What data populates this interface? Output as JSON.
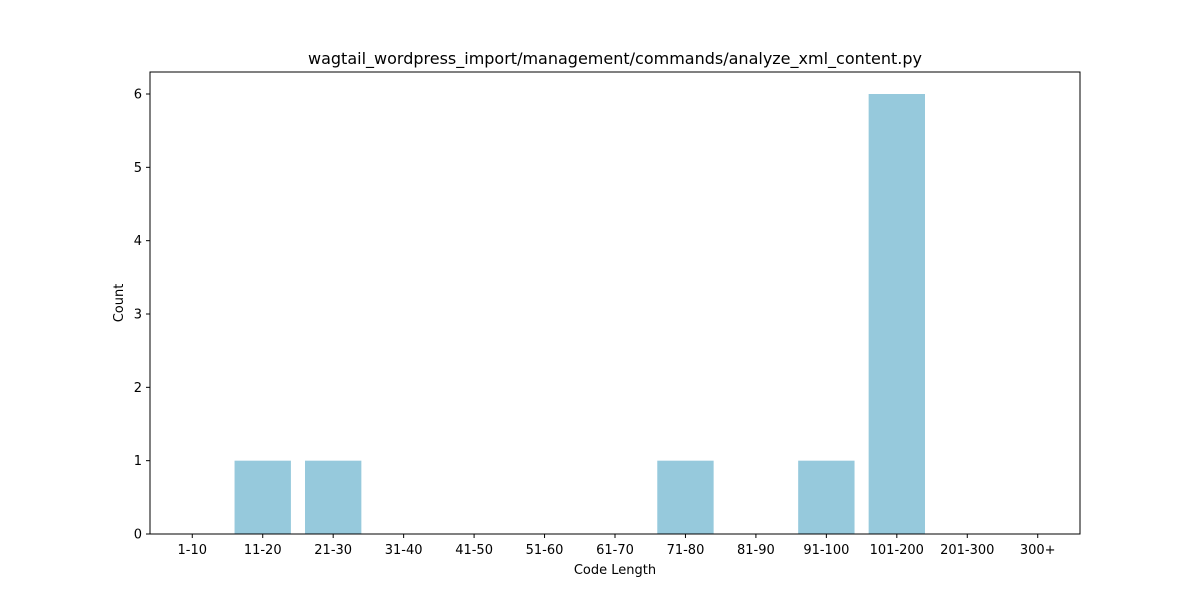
{
  "chart_data": {
    "type": "bar",
    "title": "wagtail_wordpress_import/management/commands/analyze_xml_content.py",
    "xlabel": "Code Length",
    "ylabel": "Count",
    "categories": [
      "1-10",
      "11-20",
      "21-30",
      "31-40",
      "41-50",
      "51-60",
      "61-70",
      "71-80",
      "81-90",
      "91-100",
      "101-200",
      "201-300",
      "300+"
    ],
    "values": [
      0,
      1,
      1,
      0,
      0,
      0,
      0,
      1,
      0,
      1,
      6,
      0,
      0
    ],
    "yticks": [
      0,
      1,
      2,
      3,
      4,
      5,
      6
    ],
    "ylim": [
      0,
      6.3
    ],
    "bar_color": "#96c9dc",
    "grid": false,
    "legend": "none"
  }
}
